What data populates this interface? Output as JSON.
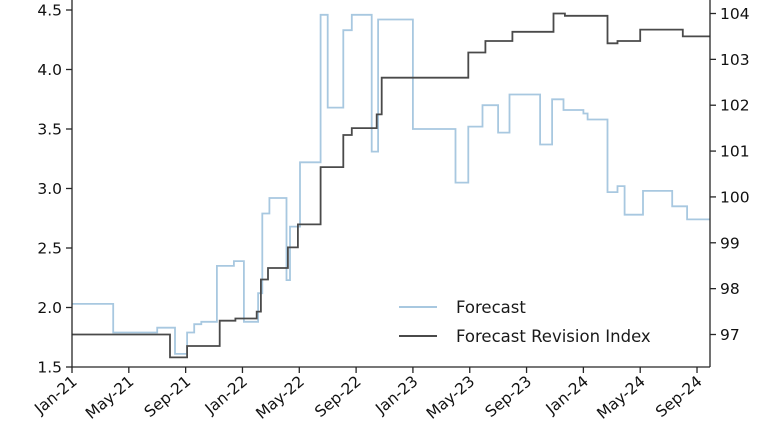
{
  "legend": {
    "items": [
      {
        "label": "Forecast",
        "color": "#a8c8e0"
      },
      {
        "label": "Forecast Revision Index",
        "color": "#4a4a4a"
      }
    ]
  },
  "chart_data": {
    "type": "line",
    "subtype": "step-post",
    "title": "",
    "xlabel": "",
    "ylabel_left": "",
    "ylabel_right": "",
    "grid": false,
    "legend_position": "lower center-right, no frame",
    "x_unit": "months since Jan-2021",
    "x_range": [
      0,
      44.9
    ],
    "x_ticks": {
      "positions": [
        0,
        4,
        8,
        12,
        16,
        20,
        24,
        28,
        32,
        36,
        40,
        44
      ],
      "labels": [
        "Jan-21",
        "May-21",
        "Sep-21",
        "Jan-22",
        "May-22",
        "Sep-22",
        "Jan-23",
        "May-23",
        "Sep-23",
        "Jan-24",
        "May-24",
        "Sep-24"
      ],
      "rotation_deg": -40
    },
    "left_axis": {
      "range": [
        1.5,
        4.5
      ],
      "tick_labels": [
        "1.5",
        "2.0",
        "2.5",
        "3.0",
        "3.5",
        "4.0",
        "4.5"
      ],
      "ticks": [
        1.5,
        2.0,
        2.5,
        3.0,
        3.5,
        4.0,
        4.5
      ]
    },
    "right_axis": {
      "range": [
        96.3,
        104.45
      ],
      "tick_labels": [
        "97",
        "98",
        "99",
        "100",
        "101",
        "102",
        "103",
        "104"
      ],
      "ticks": [
        97,
        98,
        99,
        100,
        101,
        102,
        103,
        104
      ]
    },
    "series": [
      {
        "name": "Forecast",
        "axis": "left",
        "color": "#a8c8e0",
        "steps": [
          [
            0,
            2.03
          ],
          [
            2.9,
            1.79
          ],
          [
            6.0,
            1.83
          ],
          [
            7.25,
            1.61
          ],
          [
            8.1,
            1.79
          ],
          [
            8.6,
            1.86
          ],
          [
            9.1,
            1.88
          ],
          [
            10.2,
            2.35
          ],
          [
            11.4,
            2.39
          ],
          [
            12.1,
            1.88
          ],
          [
            13.1,
            2.12
          ],
          [
            13.4,
            2.79
          ],
          [
            13.9,
            2.92
          ],
          [
            15.1,
            2.23
          ],
          [
            15.35,
            2.68
          ],
          [
            16.05,
            3.22
          ],
          [
            17.5,
            4.46
          ],
          [
            18.0,
            3.68
          ],
          [
            19.1,
            4.33
          ],
          [
            19.7,
            4.46
          ],
          [
            21.1,
            3.31
          ],
          [
            21.55,
            4.42
          ],
          [
            24.0,
            3.5
          ],
          [
            27.0,
            3.05
          ],
          [
            27.9,
            3.52
          ],
          [
            28.9,
            3.7
          ],
          [
            30.0,
            3.47
          ],
          [
            30.8,
            3.79
          ],
          [
            32.95,
            3.37
          ],
          [
            33.8,
            3.75
          ],
          [
            34.6,
            3.66
          ],
          [
            36.0,
            3.63
          ],
          [
            36.3,
            3.58
          ],
          [
            37.7,
            2.97
          ],
          [
            38.4,
            3.02
          ],
          [
            38.9,
            2.78
          ],
          [
            40.2,
            2.98
          ],
          [
            42.25,
            2.85
          ],
          [
            43.3,
            2.74
          ]
        ]
      },
      {
        "name": "Forecast Revision Index",
        "axis": "right",
        "color": "#4a4a4a",
        "steps": [
          [
            0,
            97.0
          ],
          [
            6.9,
            96.5
          ],
          [
            8.1,
            96.75
          ],
          [
            10.4,
            97.3
          ],
          [
            11.5,
            97.35
          ],
          [
            13.0,
            97.5
          ],
          [
            13.3,
            98.2
          ],
          [
            13.8,
            98.45
          ],
          [
            15.2,
            98.9
          ],
          [
            15.9,
            99.4
          ],
          [
            17.5,
            100.65
          ],
          [
            19.1,
            101.35
          ],
          [
            19.7,
            101.5
          ],
          [
            21.45,
            101.8
          ],
          [
            21.8,
            102.6
          ],
          [
            27.9,
            103.15
          ],
          [
            29.1,
            103.4
          ],
          [
            31.0,
            103.6
          ],
          [
            33.9,
            104.0
          ],
          [
            34.7,
            103.95
          ],
          [
            37.7,
            103.35
          ],
          [
            38.4,
            103.4
          ],
          [
            40.0,
            103.65
          ],
          [
            43.0,
            103.5
          ]
        ]
      }
    ]
  }
}
